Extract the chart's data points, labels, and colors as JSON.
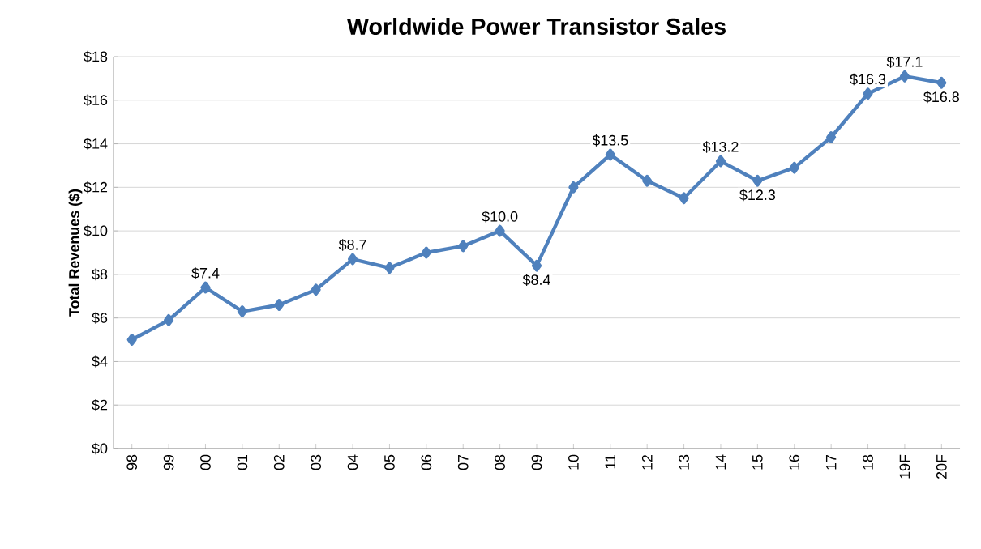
{
  "chart_data": {
    "type": "line",
    "title": "Worldwide Power Transistor Sales",
    "ylabel": "Total Revenues ($)",
    "categories": [
      "98",
      "99",
      "00",
      "01",
      "02",
      "03",
      "04",
      "05",
      "06",
      "07",
      "08",
      "09",
      "10",
      "11",
      "12",
      "13",
      "14",
      "15",
      "16",
      "17",
      "18",
      "19F",
      "20F"
    ],
    "values": [
      5.0,
      5.9,
      7.4,
      6.3,
      6.6,
      7.3,
      8.7,
      8.3,
      9.0,
      9.3,
      10.0,
      8.4,
      12.0,
      13.5,
      12.3,
      11.5,
      13.2,
      12.3,
      12.9,
      14.3,
      16.3,
      17.1,
      16.8
    ],
    "value_labels": [
      null,
      null,
      "$7.4",
      null,
      null,
      null,
      "$8.7",
      null,
      null,
      null,
      "$10.0",
      "$8.4",
      null,
      "$13.5",
      null,
      null,
      "$13.2",
      "$12.3",
      null,
      null,
      "$16.3",
      "$17.1",
      "$16.8"
    ],
    "color": "#4f81bd",
    "ylim": [
      0,
      18
    ],
    "yticks": [
      {
        "value": 0,
        "label": "$0"
      },
      {
        "value": 2,
        "label": "$2"
      },
      {
        "value": 4,
        "label": "$4"
      },
      {
        "value": 6,
        "label": "$6"
      },
      {
        "value": 8,
        "label": "$8"
      },
      {
        "value": 10,
        "label": "$10"
      },
      {
        "value": 12,
        "label": "$12"
      },
      {
        "value": 14,
        "label": "$14"
      },
      {
        "value": 16,
        "label": "$16"
      },
      {
        "value": 18,
        "label": "$18"
      }
    ],
    "grid": "y",
    "marker": "diamond",
    "line_style": "solid"
  }
}
